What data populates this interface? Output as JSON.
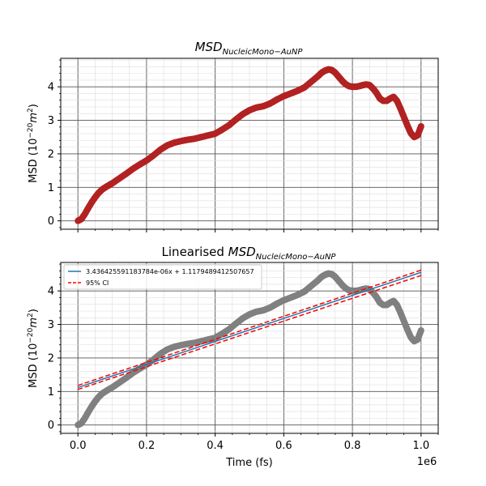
{
  "chart_data": [
    {
      "type": "scatter",
      "title_main": "MSD",
      "title_sub": "NucleicMono−AuNP",
      "title_prefix": "",
      "xlabel": "",
      "ylabel_main": "MSD (10",
      "ylabel_sup": "−20",
      "ylabel_unit": "m",
      "ylabel_sup2": "2",
      "ylabel_end": ")",
      "xlim": [
        -50000,
        1050000
      ],
      "ylim": [
        -0.25,
        4.85
      ],
      "yticks": [
        0,
        1,
        2,
        3,
        4
      ],
      "xticks": [
        0,
        200000,
        400000,
        600000,
        800000,
        1000000
      ],
      "grid": true,
      "marker_color": "#b22222",
      "series": [
        {
          "x": [
            0,
            10000,
            20000,
            30000,
            40000,
            50000,
            60000,
            70000,
            80000,
            90000,
            100000,
            120000,
            140000,
            160000,
            180000,
            200000,
            220000,
            240000,
            260000,
            280000,
            300000,
            320000,
            340000,
            360000,
            380000,
            400000,
            420000,
            440000,
            460000,
            480000,
            500000,
            520000,
            540000,
            560000,
            580000,
            600000,
            620000,
            640000,
            660000,
            680000,
            700000,
            710000,
            720000,
            730000,
            740000,
            750000,
            760000,
            770000,
            780000,
            790000,
            800000,
            810000,
            820000,
            830000,
            840000,
            850000,
            860000,
            870000,
            880000,
            890000,
            900000,
            910000,
            920000,
            930000,
            940000,
            950000,
            960000,
            970000,
            980000,
            990000,
            1000000
          ],
          "values": [
            0.0,
            0.05,
            0.2,
            0.38,
            0.55,
            0.7,
            0.83,
            0.93,
            1.0,
            1.06,
            1.12,
            1.26,
            1.4,
            1.55,
            1.68,
            1.8,
            1.95,
            2.12,
            2.25,
            2.33,
            2.38,
            2.42,
            2.45,
            2.5,
            2.55,
            2.6,
            2.72,
            2.85,
            3.02,
            3.18,
            3.3,
            3.38,
            3.42,
            3.5,
            3.62,
            3.72,
            3.8,
            3.88,
            3.98,
            4.15,
            4.32,
            4.42,
            4.48,
            4.52,
            4.5,
            4.42,
            4.3,
            4.18,
            4.08,
            4.02,
            4.0,
            4.0,
            4.02,
            4.05,
            4.07,
            4.05,
            3.95,
            3.82,
            3.65,
            3.58,
            3.58,
            3.65,
            3.7,
            3.58,
            3.35,
            3.1,
            2.85,
            2.62,
            2.5,
            2.55,
            2.82
          ]
        }
      ]
    },
    {
      "type": "scatter",
      "title_main": "MSD",
      "title_sub": "NucleicMono−AuNP",
      "title_prefix": "Linearised ",
      "xlabel": "Time (fs)",
      "ylabel_main": "MSD (10",
      "ylabel_sup": "−20",
      "ylabel_unit": "m",
      "ylabel_sup2": "2",
      "ylabel_end": ")",
      "xlim": [
        -50000,
        1050000
      ],
      "ylim": [
        -0.25,
        4.85
      ],
      "yticks": [
        0,
        1,
        2,
        3,
        4
      ],
      "xticks": [
        0,
        200000,
        400000,
        600000,
        800000,
        1000000
      ],
      "xtick_labels": [
        "0.0",
        "0.2",
        "0.4",
        "0.6",
        "0.8",
        "1.0"
      ],
      "x_offset_label": "1e6",
      "grid": true,
      "marker_color": "#808080",
      "fit": {
        "label": "3.436425591183784e-06x + 1.1179489412507657",
        "slope": 3.436425591183784e-06,
        "intercept": 1.1179489412507657,
        "color": "#1f77b4",
        "ci_label": "95% CI",
        "ci_color": "#ff0000",
        "ci_lower": [
          1.06,
          4.46
        ],
        "ci_upper": [
          1.18,
          4.62
        ]
      },
      "legend_position": "upper-left"
    }
  ],
  "yticks_labels": [
    "0",
    "1",
    "2",
    "3",
    "4"
  ]
}
